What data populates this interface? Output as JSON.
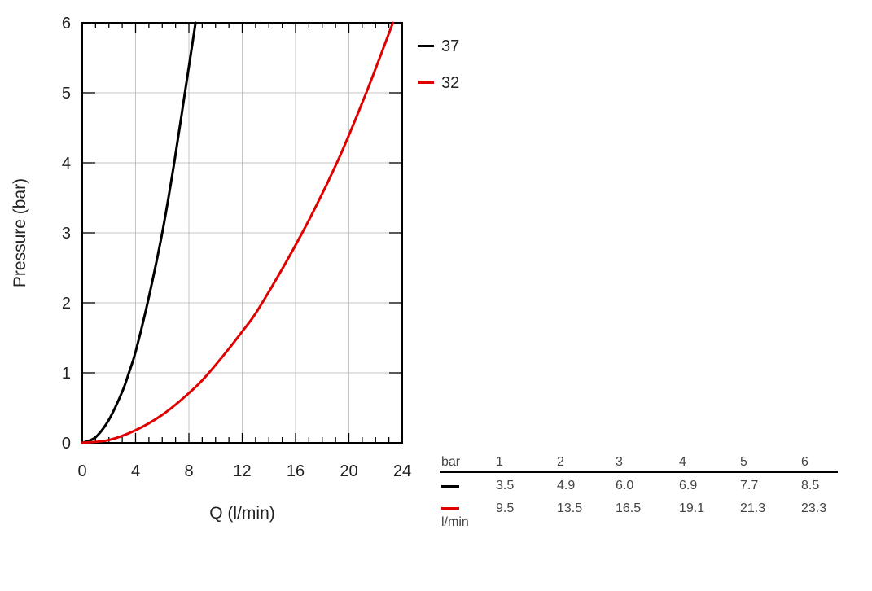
{
  "chart_data": {
    "type": "line",
    "xlabel": "Q (l/min)",
    "ylabel": "Pressure (bar)",
    "xlim": [
      0,
      24
    ],
    "ylim": [
      0,
      6
    ],
    "x_ticks": [
      "0",
      "4",
      "8",
      "12",
      "16",
      "20",
      "24"
    ],
    "y_ticks": [
      "0",
      "1",
      "2",
      "3",
      "4",
      "5",
      "6"
    ],
    "grid": true,
    "legend_position": "right",
    "series": [
      {
        "name": "37",
        "color": "#000000",
        "points": [
          [
            0,
            0
          ],
          [
            1,
            0.08
          ],
          [
            2,
            0.33
          ],
          [
            3,
            0.73
          ],
          [
            3.5,
            1
          ],
          [
            4,
            1.3
          ],
          [
            4.9,
            2
          ],
          [
            6.0,
            3
          ],
          [
            6.9,
            4
          ],
          [
            7.7,
            5
          ],
          [
            8.5,
            6
          ]
        ]
      },
      {
        "name": "32",
        "color": "#e00000",
        "points": [
          [
            0,
            0
          ],
          [
            2,
            0.04
          ],
          [
            4,
            0.18
          ],
          [
            6,
            0.4
          ],
          [
            8,
            0.71
          ],
          [
            9.5,
            1
          ],
          [
            12,
            1.59
          ],
          [
            13.5,
            2
          ],
          [
            16.5,
            3
          ],
          [
            19.1,
            4
          ],
          [
            21.3,
            5
          ],
          [
            23.3,
            6
          ]
        ]
      }
    ]
  },
  "flow_table": {
    "header_label": "bar",
    "unit_label": "l/min",
    "pressures": [
      "1",
      "2",
      "3",
      "4",
      "5",
      "6"
    ],
    "rows": [
      {
        "series": "37",
        "color": "#000000",
        "values": [
          "3.5",
          "4.9",
          "6.0",
          "6.9",
          "7.7",
          "8.5"
        ]
      },
      {
        "series": "32",
        "color": "#e00000",
        "values": [
          "9.5",
          "13.5",
          "16.5",
          "19.1",
          "21.3",
          "23.3"
        ]
      }
    ]
  }
}
